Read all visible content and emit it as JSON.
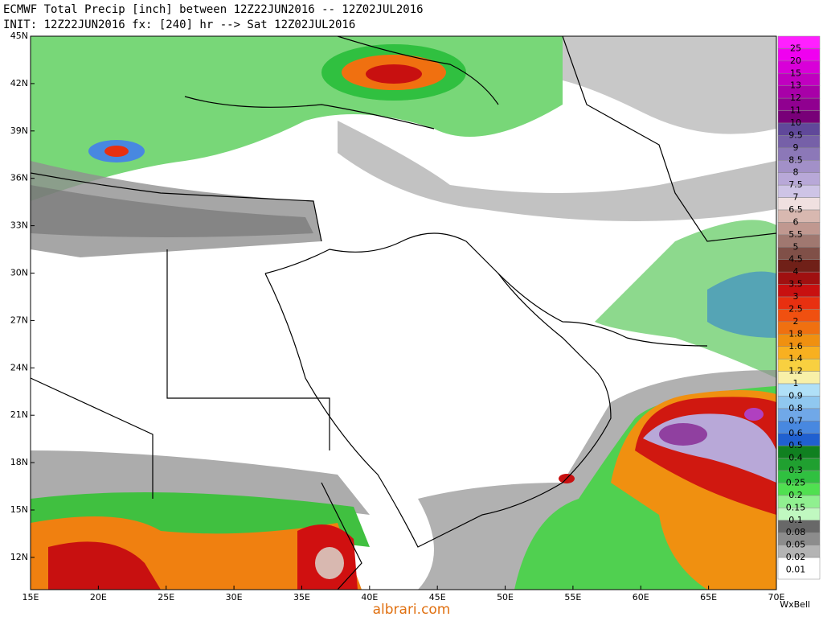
{
  "header": {
    "title": "ECMWF Total Precip [inch] between 12Z22JUN2016 -- 12Z02JUL2016",
    "subtitle": "INIT: 12Z22JUN2016 fx: [240] hr --> Sat 12Z02JUL2016"
  },
  "map": {
    "lat_labels": [
      "45N",
      "42N",
      "39N",
      "36N",
      "33N",
      "30N",
      "27N",
      "24N",
      "21N",
      "18N",
      "15N",
      "12N"
    ],
    "lon_labels": [
      "15E",
      "20E",
      "25E",
      "30E",
      "35E",
      "40E",
      "45E",
      "50E",
      "55E",
      "60E",
      "65E",
      "70E"
    ]
  },
  "colorbar": {
    "levels": [
      {
        "label": "25",
        "color": "#ff20ff"
      },
      {
        "label": "20",
        "color": "#f000f0"
      },
      {
        "label": "15",
        "color": "#d800d8"
      },
      {
        "label": "13",
        "color": "#c000c0"
      },
      {
        "label": "12",
        "color": "#a800a8"
      },
      {
        "label": "11",
        "color": "#900090"
      },
      {
        "label": "10",
        "color": "#780078"
      },
      {
        "label": "9.5",
        "color": "#60489a"
      },
      {
        "label": "9",
        "color": "#7660a8"
      },
      {
        "label": "8.5",
        "color": "#8c78b8"
      },
      {
        "label": "8",
        "color": "#a290c8"
      },
      {
        "label": "7.5",
        "color": "#b8a8d8"
      },
      {
        "label": "7",
        "color": "#cec4e6"
      },
      {
        "label": "6.5",
        "color": "#f0e0e0"
      },
      {
        "label": "6",
        "color": "#d8b8b0"
      },
      {
        "label": "5.5",
        "color": "#c09890"
      },
      {
        "label": "5",
        "color": "#a07870"
      },
      {
        "label": "4.5",
        "color": "#805048"
      },
      {
        "label": "4",
        "color": "#702018"
      },
      {
        "label": "3.5",
        "color": "#a01010"
      },
      {
        "label": "3",
        "color": "#c81010"
      },
      {
        "label": "2.5",
        "color": "#e83010"
      },
      {
        "label": "2",
        "color": "#f05010"
      },
      {
        "label": "1.8",
        "color": "#f07010"
      },
      {
        "label": "1.6",
        "color": "#f09010"
      },
      {
        "label": "1.4",
        "color": "#f8b020"
      },
      {
        "label": "1.2",
        "color": "#f8d040"
      },
      {
        "label": "1",
        "color": "#f8f0a8"
      },
      {
        "label": "0.9",
        "color": "#b0e0f8"
      },
      {
        "label": "0.8",
        "color": "#90c8f0"
      },
      {
        "label": "0.7",
        "color": "#70a8e8"
      },
      {
        "label": "0.6",
        "color": "#4888e0"
      },
      {
        "label": "0.5",
        "color": "#2060d0"
      },
      {
        "label": "0.4",
        "color": "#108020"
      },
      {
        "label": "0.3",
        "color": "#20a030"
      },
      {
        "label": "0.25",
        "color": "#30c040"
      },
      {
        "label": "0.2",
        "color": "#50e050"
      },
      {
        "label": "0.15",
        "color": "#90f090"
      },
      {
        "label": "0.1",
        "color": "#c0f8c0"
      },
      {
        "label": "0.08",
        "color": "#686868"
      },
      {
        "label": "0.05",
        "color": "#8c8c8c"
      },
      {
        "label": "0.02",
        "color": "#b4b4b4"
      },
      {
        "label": "0.01",
        "color": "#ffffff"
      }
    ]
  },
  "footer": {
    "credit": "WxBell",
    "watermark": "albrari.com"
  }
}
